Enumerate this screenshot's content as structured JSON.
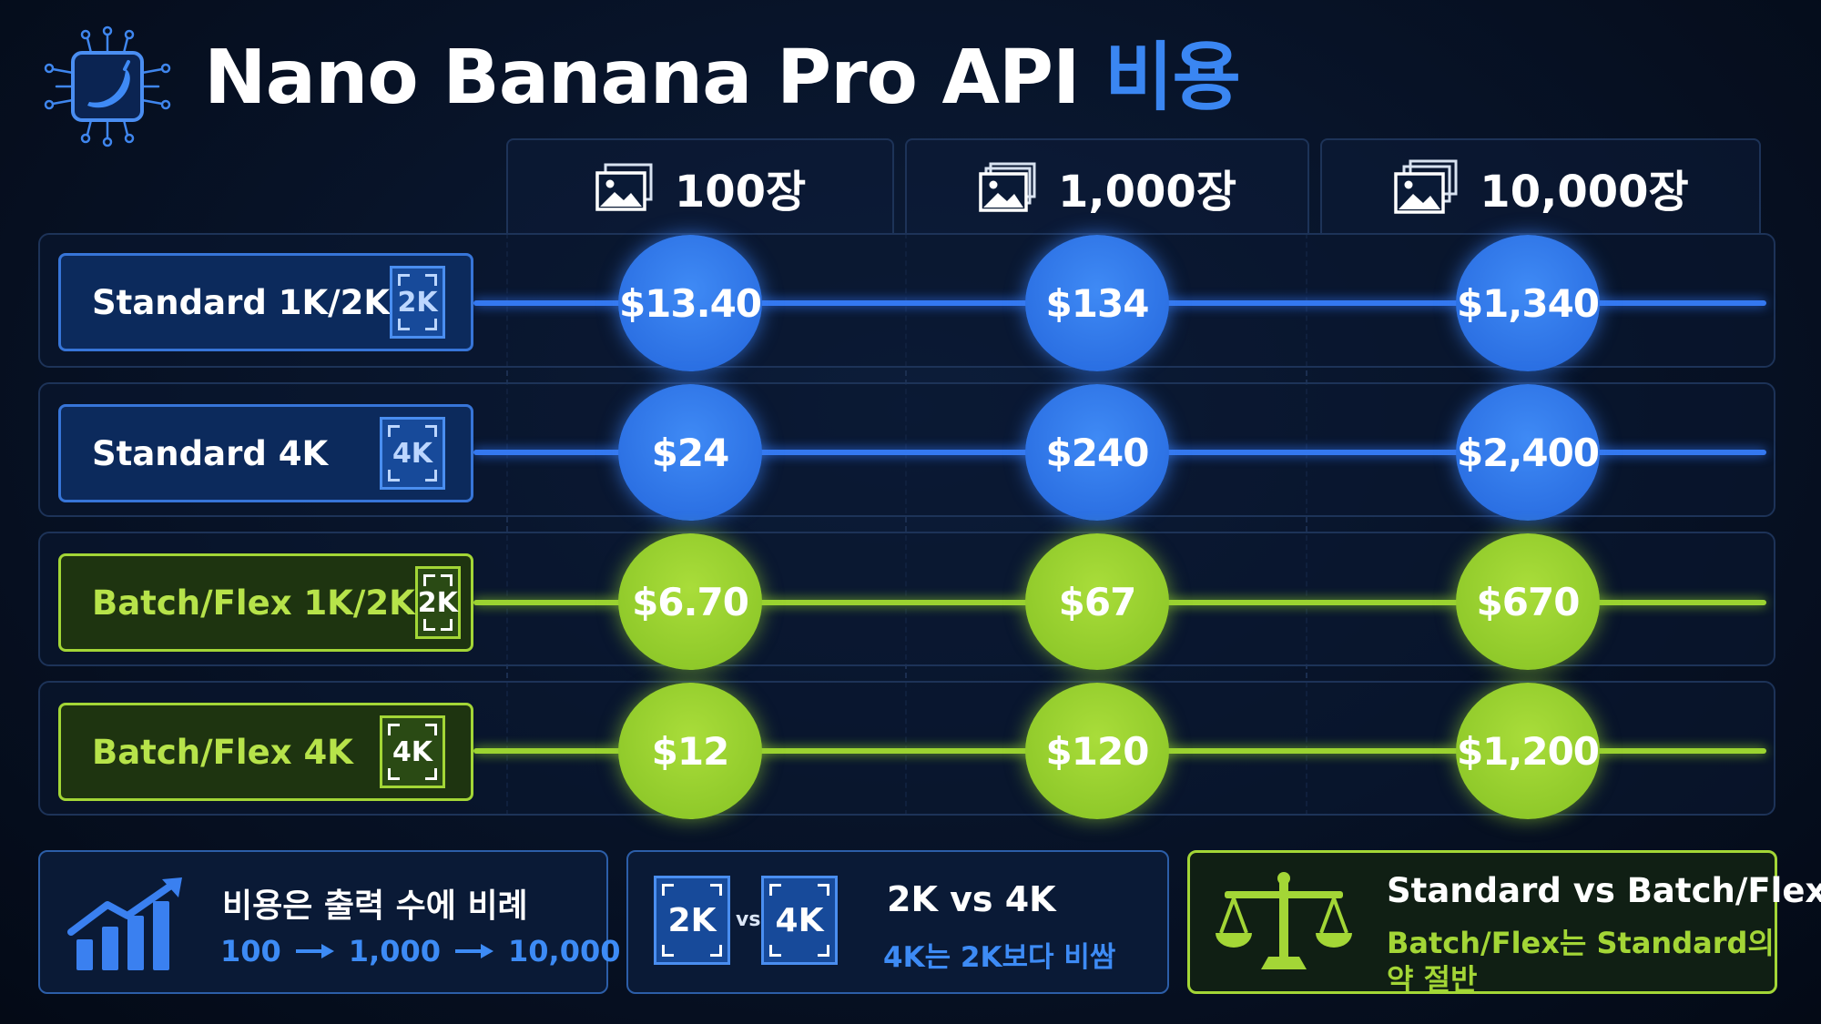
{
  "header": {
    "title": "Nano Banana Pro API",
    "title_highlight": "비용",
    "logo_icon": "banana-chip-icon"
  },
  "columns": [
    {
      "label": "100장",
      "icon": "image-stack-icon"
    },
    {
      "label": "1,000장",
      "icon": "image-stack-icon"
    },
    {
      "label": "10,000장",
      "icon": "image-stack-icon"
    }
  ],
  "rows": [
    {
      "label": "Standard 1K/2K",
      "badge": "2K",
      "theme": "blue",
      "prices": [
        "$13.40",
        "$134",
        "$1,340"
      ]
    },
    {
      "label": "Standard 4K",
      "badge": "4K",
      "theme": "blue",
      "prices": [
        "$24",
        "$240",
        "$2,400"
      ]
    },
    {
      "label": "Batch/Flex 1K/2K",
      "badge": "2K",
      "theme": "green",
      "prices": [
        "$6.70",
        "$67",
        "$670"
      ]
    },
    {
      "label": "Batch/Flex 4K",
      "badge": "4K",
      "theme": "green",
      "prices": [
        "$12",
        "$120",
        "$1,200"
      ]
    }
  ],
  "cards": {
    "proportional": {
      "title": "비용은 출력 수에 비례",
      "steps": [
        "100",
        "1,000",
        "10,000"
      ],
      "icon": "growth-chart-icon"
    },
    "resolution": {
      "left_badge": "2K",
      "vs": "vs",
      "right_badge": "4K",
      "title": "2K vs 4K",
      "subtitle": "4K는 2K보다 비쌈"
    },
    "tiers": {
      "title": "Standard vs Batch/Flex",
      "subtitle_line1": "Batch/Flex는 Standard의",
      "subtitle_line2": "약 절반",
      "icon": "balance-scale-icon"
    }
  },
  "colors": {
    "blue": "#3478f0",
    "green": "#9bd331",
    "title_highlight": "#3a86f2",
    "background": "#050d1c"
  }
}
